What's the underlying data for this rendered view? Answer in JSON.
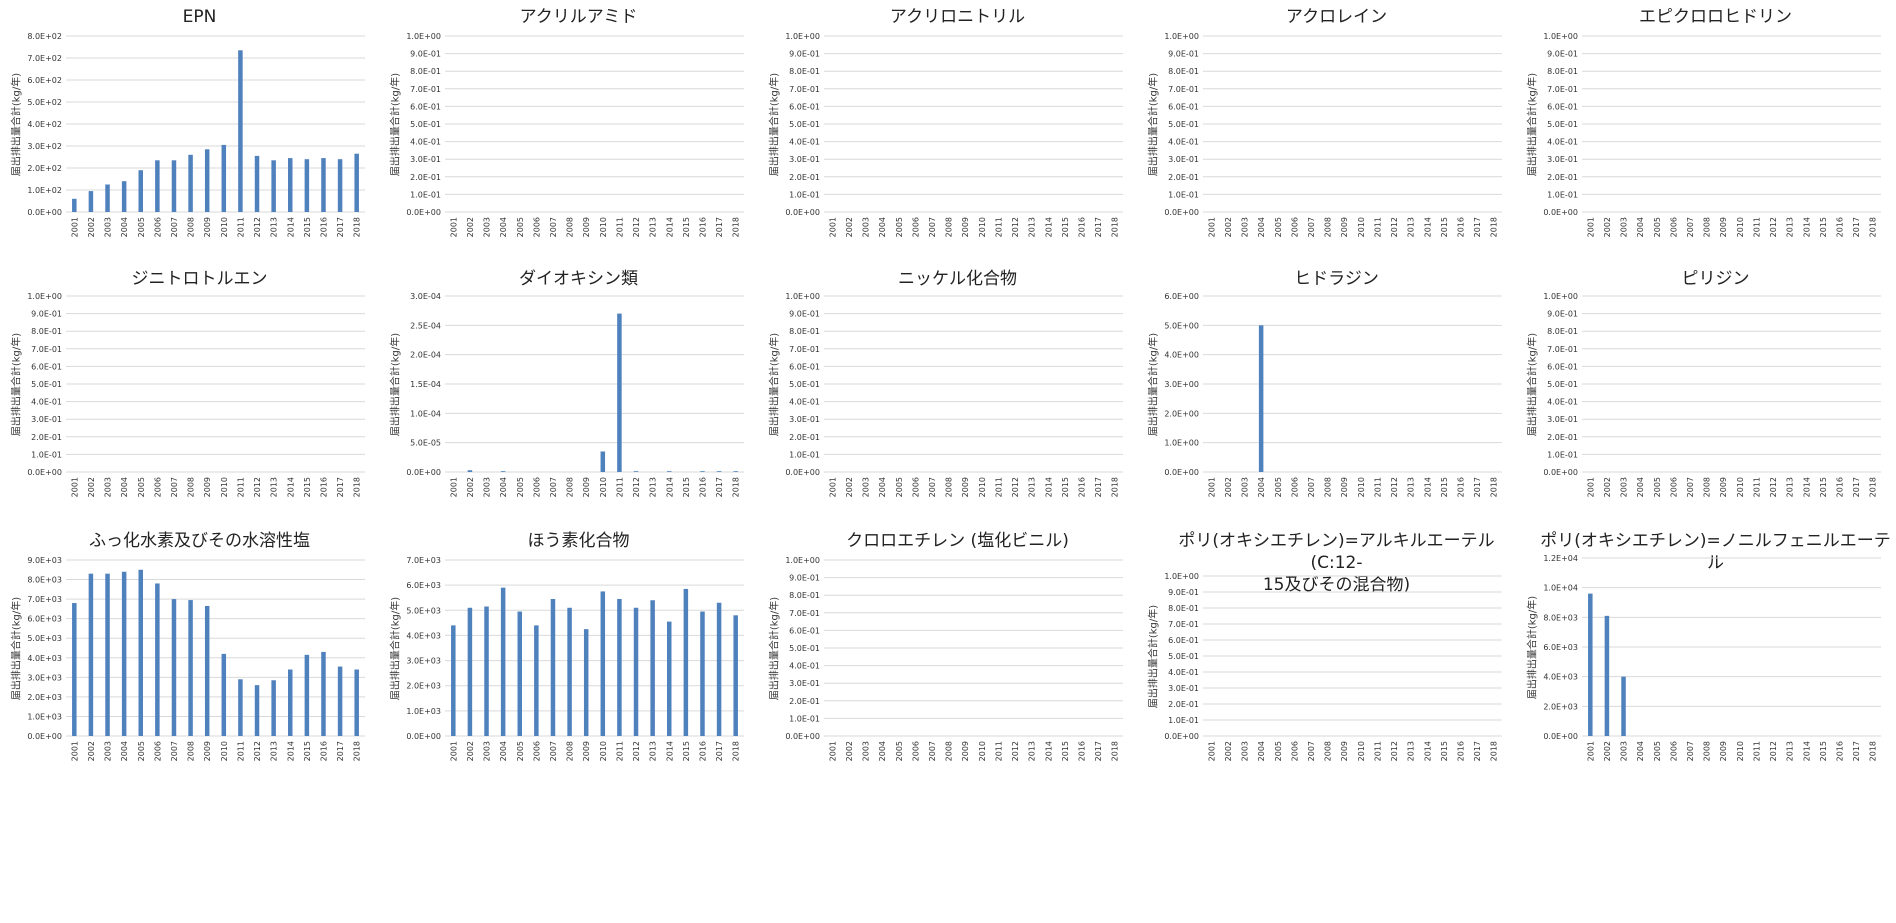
{
  "series_color": "#4F81BD",
  "grid_color": "#d9d9d9",
  "ylabel": "届出排出量合計(kg/年)",
  "categories": [
    "2001",
    "2002",
    "2003",
    "2004",
    "2005",
    "2006",
    "2007",
    "2008",
    "2009",
    "2010",
    "2011",
    "2012",
    "2013",
    "2014",
    "2015",
    "2016",
    "2017",
    "2018"
  ],
  "chart_data": [
    {
      "type": "bar",
      "title": "EPN",
      "ylabel": "届出排出量合計(kg/年)",
      "ylim": [
        0,
        800
      ],
      "yticks": [
        "0.0E+00",
        "1.0E+02",
        "2.0E+02",
        "3.0E+02",
        "4.0E+02",
        "5.0E+02",
        "6.0E+02",
        "7.0E+02",
        "8.0E+02"
      ],
      "values": [
        60,
        95,
        125,
        140,
        190,
        235,
        235,
        260,
        285,
        305,
        735,
        255,
        235,
        245,
        240,
        245,
        240,
        265
      ]
    },
    {
      "type": "bar",
      "title": "アクリルアミド",
      "ylabel": "届出排出量合計(kg/年)",
      "ylim": [
        0,
        1
      ],
      "yticks": [
        "0.0E+00",
        "1.0E-01",
        "2.0E-01",
        "3.0E-01",
        "4.0E-01",
        "5.0E-01",
        "6.0E-01",
        "7.0E-01",
        "8.0E-01",
        "9.0E-01",
        "1.0E+00"
      ],
      "values": [
        0,
        0,
        0,
        0,
        0,
        0,
        0,
        0,
        0,
        0,
        0,
        0,
        0,
        0,
        0,
        0,
        0,
        0
      ]
    },
    {
      "type": "bar",
      "title": "アクリロニトリル",
      "ylabel": "届出排出量合計(kg/年)",
      "ylim": [
        0,
        1
      ],
      "yticks": [
        "0.0E+00",
        "1.0E-01",
        "2.0E-01",
        "3.0E-01",
        "4.0E-01",
        "5.0E-01",
        "6.0E-01",
        "7.0E-01",
        "8.0E-01",
        "9.0E-01",
        "1.0E+00"
      ],
      "values": [
        0,
        0,
        0,
        0,
        0,
        0,
        0,
        0,
        0,
        0,
        0,
        0,
        0,
        0,
        0,
        0,
        0,
        0
      ]
    },
    {
      "type": "bar",
      "title": "アクロレイン",
      "ylabel": "届出排出量合計(kg/年)",
      "ylim": [
        0,
        1
      ],
      "yticks": [
        "0.0E+00",
        "1.0E-01",
        "2.0E-01",
        "3.0E-01",
        "4.0E-01",
        "5.0E-01",
        "6.0E-01",
        "7.0E-01",
        "8.0E-01",
        "9.0E-01",
        "1.0E+00"
      ],
      "values": [
        0,
        0,
        0,
        0,
        0,
        0,
        0,
        0,
        0,
        0,
        0,
        0,
        0,
        0,
        0,
        0,
        0,
        0
      ]
    },
    {
      "type": "bar",
      "title": "エピクロロヒドリン",
      "ylabel": "届出排出量合計(kg/年)",
      "ylim": [
        0,
        1
      ],
      "yticks": [
        "0.0E+00",
        "1.0E-01",
        "2.0E-01",
        "3.0E-01",
        "4.0E-01",
        "5.0E-01",
        "6.0E-01",
        "7.0E-01",
        "8.0E-01",
        "9.0E-01",
        "1.0E+00"
      ],
      "values": [
        0,
        0,
        0,
        0,
        0,
        0,
        0,
        0,
        0,
        0,
        0,
        0,
        0,
        0,
        0,
        0,
        0,
        0
      ]
    },
    {
      "type": "bar",
      "title": "ジニトロトルエン",
      "ylabel": "届出排出量合計(kg/年)",
      "ylim": [
        0,
        1
      ],
      "yticks": [
        "0.0E+00",
        "1.0E-01",
        "2.0E-01",
        "3.0E-01",
        "4.0E-01",
        "5.0E-01",
        "6.0E-01",
        "7.0E-01",
        "8.0E-01",
        "9.0E-01",
        "1.0E+00"
      ],
      "values": [
        0,
        0,
        0,
        0,
        0,
        0,
        0,
        0,
        0,
        0,
        0,
        0,
        0,
        0,
        0,
        0,
        0,
        0
      ]
    },
    {
      "type": "bar",
      "title": "ダイオキシン類",
      "ylabel": "届出排出量合計(kg/年)",
      "ylim": [
        0,
        0.0003
      ],
      "yticks": [
        "0.0E+00",
        "5.0E-05",
        "1.0E-04",
        "1.5E-04",
        "2.0E-04",
        "2.5E-04",
        "3.0E-04"
      ],
      "values": [
        0,
        3e-06,
        0,
        5e-07,
        0,
        0,
        0,
        0,
        0,
        3.5e-05,
        0.00027,
        5e-07,
        0,
        5e-07,
        0,
        5e-07,
        5e-07,
        5e-07
      ]
    },
    {
      "type": "bar",
      "title": "ニッケル化合物",
      "ylabel": "届出排出量合計(kg/年)",
      "ylim": [
        0,
        1
      ],
      "yticks": [
        "0.0E+00",
        "1.0E-01",
        "2.0E-01",
        "3.0E-01",
        "4.0E-01",
        "5.0E-01",
        "6.0E-01",
        "7.0E-01",
        "8.0E-01",
        "9.0E-01",
        "1.0E+00"
      ],
      "values": [
        0,
        0,
        0,
        0,
        0,
        0,
        0,
        0,
        0,
        0,
        0,
        0,
        0,
        0,
        0,
        0,
        0,
        0
      ]
    },
    {
      "type": "bar",
      "title": "ヒドラジン",
      "ylabel": "届出排出量合計(kg/年)",
      "ylim": [
        0,
        6
      ],
      "yticks": [
        "0.0E+00",
        "1.0E+00",
        "2.0E+00",
        "3.0E+00",
        "4.0E+00",
        "5.0E+00",
        "6.0E+00"
      ],
      "values": [
        0,
        0,
        0,
        5,
        0,
        0,
        0,
        0,
        0,
        0,
        0,
        0,
        0,
        0,
        0,
        0,
        0,
        0
      ]
    },
    {
      "type": "bar",
      "title": "ピリジン",
      "ylabel": "届出排出量合計(kg/年)",
      "ylim": [
        0,
        1
      ],
      "yticks": [
        "0.0E+00",
        "1.0E-01",
        "2.0E-01",
        "3.0E-01",
        "4.0E-01",
        "5.0E-01",
        "6.0E-01",
        "7.0E-01",
        "8.0E-01",
        "9.0E-01",
        "1.0E+00"
      ],
      "values": [
        0,
        0,
        0,
        0,
        0,
        0,
        0,
        0,
        0,
        0,
        0,
        0,
        0,
        0,
        0,
        0,
        0,
        0
      ]
    },
    {
      "type": "bar",
      "title": "ふっ化水素及びその水溶性塩",
      "ylabel": "届出排出量合計(kg/年)",
      "ylim": [
        0,
        9000
      ],
      "yticks": [
        "0.0E+00",
        "1.0E+03",
        "2.0E+03",
        "3.0E+03",
        "4.0E+03",
        "5.0E+03",
        "6.0E+03",
        "7.0E+03",
        "8.0E+03",
        "9.0E+03"
      ],
      "values": [
        6800,
        8300,
        8300,
        8400,
        8500,
        7800,
        7000,
        6950,
        6650,
        4200,
        2900,
        2600,
        2850,
        3400,
        4150,
        4300,
        3550,
        3400
      ]
    },
    {
      "type": "bar",
      "title": "ほう素化合物",
      "ylabel": "届出排出量合計(kg/年)",
      "ylim": [
        0,
        7000
      ],
      "yticks": [
        "0.0E+00",
        "1.0E+03",
        "2.0E+03",
        "3.0E+03",
        "4.0E+03",
        "5.0E+03",
        "6.0E+03",
        "7.0E+03"
      ],
      "values": [
        4400,
        5100,
        5150,
        5900,
        4950,
        4400,
        5450,
        5100,
        4250,
        5750,
        5450,
        5100,
        5400,
        4550,
        5850,
        4950,
        5300,
        4800
      ]
    },
    {
      "type": "bar",
      "title": "クロロエチレン (塩化ビニル)",
      "ylabel": "届出排出量合計(kg/年)",
      "ylim": [
        0,
        1
      ],
      "yticks": [
        "0.0E+00",
        "1.0E-01",
        "2.0E-01",
        "3.0E-01",
        "4.0E-01",
        "5.0E-01",
        "6.0E-01",
        "7.0E-01",
        "8.0E-01",
        "9.0E-01",
        "1.0E+00"
      ],
      "values": [
        0,
        0,
        0,
        0,
        0,
        0,
        0,
        0,
        0,
        0,
        0,
        0,
        0,
        0,
        0,
        0,
        0,
        0
      ]
    },
    {
      "type": "bar",
      "title": "ポリ(オキシエチレン)=アルキルエーテル (C:12-\n15及びその混合物)",
      "ylabel": "届出排出量合計(kg/年)",
      "ylim": [
        0,
        1
      ],
      "yticks": [
        "0.0E+00",
        "1.0E-01",
        "2.0E-01",
        "3.0E-01",
        "4.0E-01",
        "5.0E-01",
        "6.0E-01",
        "7.0E-01",
        "8.0E-01",
        "9.0E-01",
        "1.0E+00"
      ],
      "values": [
        0,
        0,
        0,
        0,
        0,
        0,
        0,
        0,
        0,
        0,
        0,
        0,
        0,
        0,
        0,
        0,
        0,
        0
      ]
    },
    {
      "type": "bar",
      "title": "ポリ(オキシエチレン)=ノニルフェニルエーテル",
      "ylabel": "届出排出量合計(kg/年)",
      "ylim": [
        0,
        12000
      ],
      "yticks": [
        "0.0E+00",
        "2.0E+03",
        "4.0E+03",
        "6.0E+03",
        "8.0E+03",
        "1.0E+04",
        "1.2E+04"
      ],
      "values": [
        9600,
        8100,
        4000,
        0,
        0,
        0,
        0,
        0,
        0,
        0,
        0,
        0,
        0,
        0,
        0,
        0,
        0,
        0
      ]
    }
  ]
}
